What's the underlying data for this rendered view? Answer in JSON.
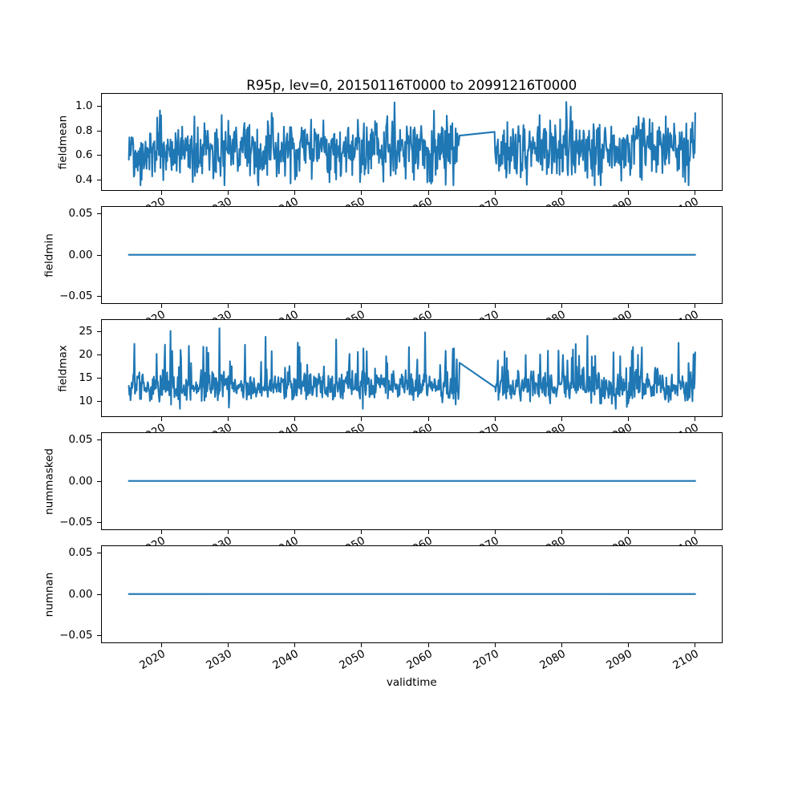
{
  "chart_data": {
    "type": "line",
    "title": "R95p, lev=0, 20150116T0000 to 20991216T0000",
    "xlabel": "validtime",
    "line_color": "#1f77b4",
    "x_start": 2015.042,
    "x_end": 2099.958,
    "points_per_year": 12,
    "gap_x": [
      2064.7,
      2069.87
    ],
    "xlim": [
      2011,
      2104
    ],
    "grid": false,
    "legend": false,
    "xticks": [
      {
        "v": 2020,
        "label": "2020"
      },
      {
        "v": 2030,
        "label": "2030"
      },
      {
        "v": 2040,
        "label": "2040"
      },
      {
        "v": 2050,
        "label": "2050"
      },
      {
        "v": 2060,
        "label": "2060"
      },
      {
        "v": 2070,
        "label": "2070"
      },
      {
        "v": 2080,
        "label": "2080"
      },
      {
        "v": 2090,
        "label": "2090"
      },
      {
        "v": 2100,
        "label": "2100"
      }
    ],
    "plots": [
      {
        "ylabel": "fieldmean",
        "ylim": [
          0.32,
          1.1
        ],
        "yticks": [
          {
            "v": 1.0,
            "label": "1.0"
          },
          {
            "v": 0.8,
            "label": "0.8"
          },
          {
            "v": 0.6,
            "label": "0.6"
          },
          {
            "v": 0.4,
            "label": "0.4"
          }
        ],
        "series": {
          "kind": "noise",
          "mean": 0.645,
          "std": 0.125,
          "min": 0.355,
          "max": 1.06,
          "spike_prob": 0,
          "spike_min": 0,
          "spike_max": 0,
          "seed": 20150116,
          "gap_endpoints": [
            0.76,
            0.79
          ]
        }
      },
      {
        "ylabel": "fieldmin",
        "ylim": [
          -0.0575,
          0.0575
        ],
        "yticks": [
          {
            "v": 0.05,
            "label": "0.05"
          },
          {
            "v": 0.0,
            "label": "0.00"
          },
          {
            "v": -0.05,
            "label": "−0.05"
          }
        ],
        "series": {
          "kind": "constant",
          "value": 0.0
        }
      },
      {
        "ylabel": "fieldmax",
        "ylim": [
          6.8,
          27.4
        ],
        "yticks": [
          {
            "v": 25,
            "label": "25"
          },
          {
            "v": 20,
            "label": "20"
          },
          {
            "v": 15,
            "label": "15"
          },
          {
            "v": 10,
            "label": "10"
          }
        ],
        "series": {
          "kind": "noise",
          "mean": 13.0,
          "std": 1.7,
          "min": 8.3,
          "max": 26.3,
          "spike_prob": 0.09,
          "spike_min": 2.5,
          "spike_max": 9.0,
          "seed": 7,
          "gap_endpoints": [
            18.2,
            13.0
          ]
        }
      },
      {
        "ylabel": "nummasked",
        "ylim": [
          -0.0575,
          0.0575
        ],
        "yticks": [
          {
            "v": 0.05,
            "label": "0.05"
          },
          {
            "v": 0.0,
            "label": "0.00"
          },
          {
            "v": -0.05,
            "label": "−0.05"
          }
        ],
        "series": {
          "kind": "constant",
          "value": 0.0
        }
      },
      {
        "ylabel": "numnan",
        "ylim": [
          -0.0575,
          0.0575
        ],
        "yticks": [
          {
            "v": 0.05,
            "label": "0.05"
          },
          {
            "v": 0.0,
            "label": "0.00"
          },
          {
            "v": -0.05,
            "label": "−0.05"
          }
        ],
        "series": {
          "kind": "constant",
          "value": 0.0
        }
      }
    ]
  }
}
